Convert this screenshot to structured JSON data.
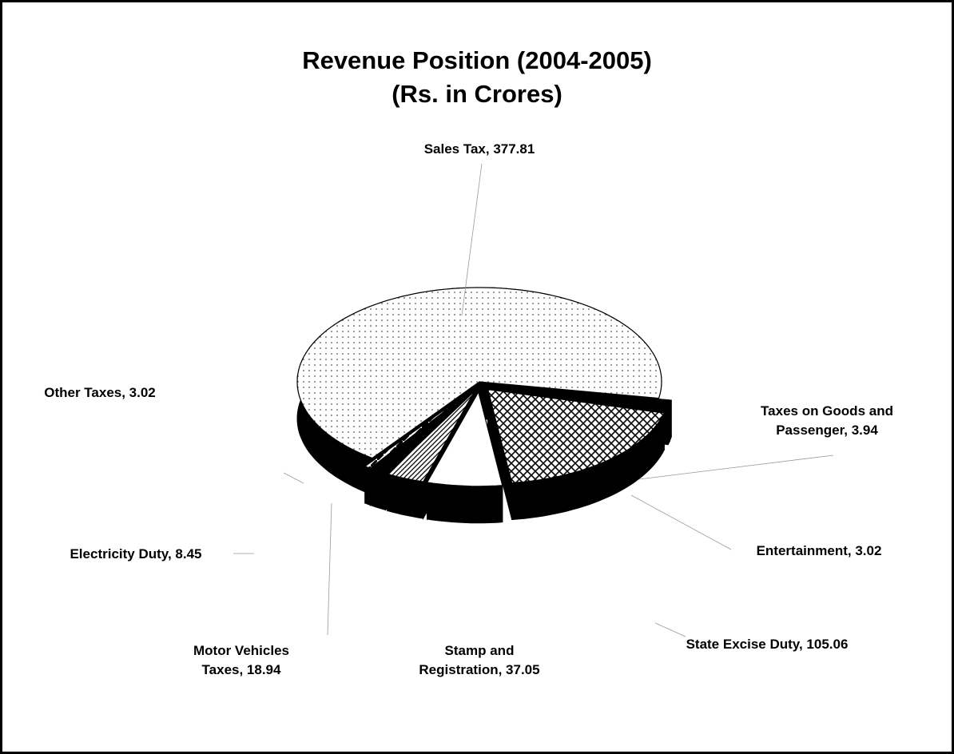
{
  "chart_data": {
    "type": "pie",
    "title": "Revenue Position (2004-2005)",
    "subtitle": "(Rs. in Crores)",
    "values": [
      377.81,
      3.94,
      3.02,
      105.06,
      37.05,
      18.94,
      8.45,
      3.02
    ],
    "value_labels": [
      "Sales Tax, 377.81",
      "Taxes on Goods and Passenger, 3.94",
      "Entertainment, 3.02",
      "State Excise Duty, 105.06",
      "Stamp and Registration, 37.05",
      "Motor Vehicles Taxes, 18.94",
      "Electricity Duty, 8.45",
      "Other Taxes, 3.02"
    ],
    "colors": [
      "#ffffff",
      "#000000",
      "#000000",
      "#ffffff",
      "#ffffff",
      "#ffffff",
      "#000000",
      "#ffffff"
    ],
    "patterns": [
      "dots",
      "solid",
      "solid",
      "crosshatch",
      "solid",
      "diagonal",
      "solid",
      "stripes"
    ]
  }
}
